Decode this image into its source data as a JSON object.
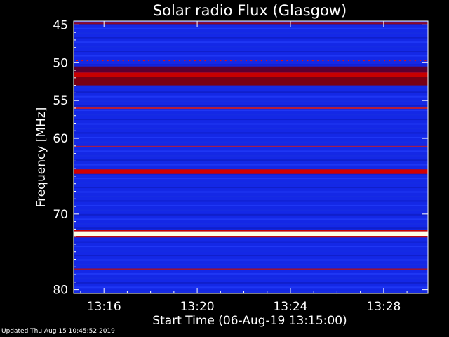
{
  "chart_data": {
    "type": "heatmap",
    "title": "Solar radio Flux (Glasgow)",
    "xlabel": "Start Time (06-Aug-19 13:15:00)",
    "ylabel": "Frequency [MHz]",
    "x_range_minutes_after_13_00": [
      14.7,
      29.9
    ],
    "x_ticks": [
      "13:16",
      "13:20",
      "13:24",
      "13:28"
    ],
    "x_tick_values_minutes_after_13_00": [
      16,
      20,
      24,
      28
    ],
    "ylim": [
      44.5,
      80.5
    ],
    "y_ticks": [
      45,
      50,
      55,
      60,
      70,
      80
    ],
    "y_scale": "frequency axis decreasing downward",
    "colormap": [
      "#00008c",
      "#0a1edc",
      "#1e3cff",
      "#a00000",
      "#ff0000",
      "#ffff80",
      "#ffffff"
    ],
    "background_color": "#1428e6",
    "bands": [
      {
        "freq_start": 44.7,
        "freq_end": 44.9,
        "intensity": "medium-red",
        "color": "#8c0a28"
      },
      {
        "freq_start": 49.6,
        "freq_end": 49.8,
        "intensity": "dotted-red",
        "color": "#e01010"
      },
      {
        "freq_start": 50.5,
        "freq_end": 51.3,
        "intensity": "dark-red",
        "color": "#5a0030"
      },
      {
        "freq_start": 51.3,
        "freq_end": 51.9,
        "intensity": "red",
        "color": "#c80000"
      },
      {
        "freq_start": 51.9,
        "freq_end": 53.0,
        "intensity": "dark-red",
        "color": "#780014"
      },
      {
        "freq_start": 55.9,
        "freq_end": 56.1,
        "intensity": "medium-red",
        "color": "#b41e3c"
      },
      {
        "freq_start": 61.0,
        "freq_end": 61.2,
        "intensity": "faint-red",
        "color": "#a01e50"
      },
      {
        "freq_start": 64.1,
        "freq_end": 64.7,
        "intensity": "red",
        "color": "#d20000"
      },
      {
        "freq_start": 72.1,
        "freq_end": 72.3,
        "intensity": "red",
        "color": "#c80000"
      },
      {
        "freq_start": 72.3,
        "freq_end": 72.9,
        "intensity": "white-hot",
        "color": "#ffffe6"
      },
      {
        "freq_start": 72.9,
        "freq_end": 73.1,
        "intensity": "red",
        "color": "#c80000"
      },
      {
        "freq_start": 77.2,
        "freq_end": 77.4,
        "intensity": "faint-red",
        "color": "#96143c"
      }
    ]
  },
  "footer": {
    "updated": "Updated Thu Aug 15 10:45:52 2019"
  }
}
